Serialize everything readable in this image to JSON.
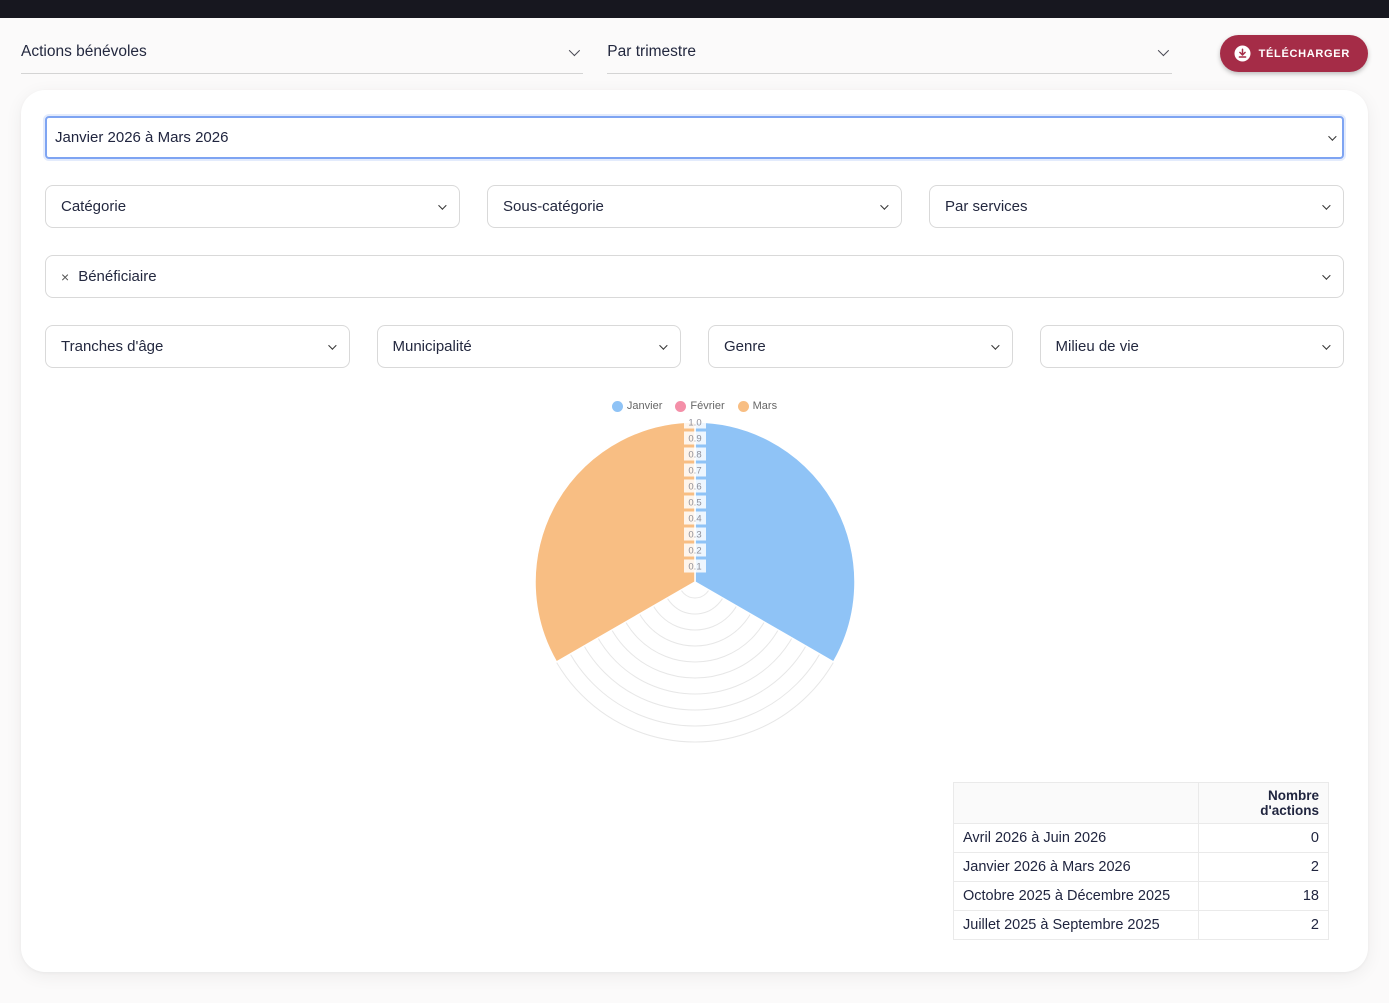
{
  "page": {
    "background": "#fbfafa",
    "topbar_color": "#17171f"
  },
  "toolbar": {
    "report_select": {
      "value": "Actions bénévoles"
    },
    "period_select": {
      "value": "Par trimestre"
    },
    "download_button": {
      "label": "TÉLÉCHARGER",
      "color": "#A52C47"
    }
  },
  "filters": {
    "trimester_select": {
      "value": "Janvier 2026 à Mars 2026",
      "focus_border": "#7EA4F2"
    },
    "categorie_select": {
      "label": "Catégorie"
    },
    "sous_categorie_select": {
      "label": "Sous-catégorie"
    },
    "par_services_select": {
      "label": "Par services"
    },
    "beneficiaire_select": {
      "remove_glyph": "×",
      "label": "Bénéficiaire"
    },
    "tranches_age_select": {
      "label": "Tranches d'âge"
    },
    "municipalite_select": {
      "label": "Municipalité"
    },
    "genre_select": {
      "label": "Genre"
    },
    "milieu_vie_select": {
      "label": "Milieu de vie"
    }
  },
  "chart_data": {
    "type": "polarArea",
    "title": "",
    "categories": [
      "Janvier",
      "Février",
      "Mars"
    ],
    "values": [
      1,
      0,
      1
    ],
    "colors": [
      "#8FC3F6",
      "#F48FA8",
      "#F8BE83"
    ],
    "rmin": 0,
    "rmax": 1,
    "ticks": [
      "0.1",
      "0.2",
      "0.3",
      "0.4",
      "0.5",
      "0.6",
      "0.7",
      "0.8",
      "0.9",
      "1.0"
    ],
    "legend_position": "top",
    "grid": true
  },
  "table": {
    "headers": [
      "",
      "Nombre d'actions"
    ],
    "rows": [
      {
        "label": "Avril 2026 à Juin 2026",
        "value": "0"
      },
      {
        "label": "Janvier 2026 à Mars 2026",
        "value": "2"
      },
      {
        "label": "Octobre 2025 à Décembre 2025",
        "value": "18"
      },
      {
        "label": "Juillet 2025 à Septembre 2025",
        "value": "2"
      }
    ]
  }
}
